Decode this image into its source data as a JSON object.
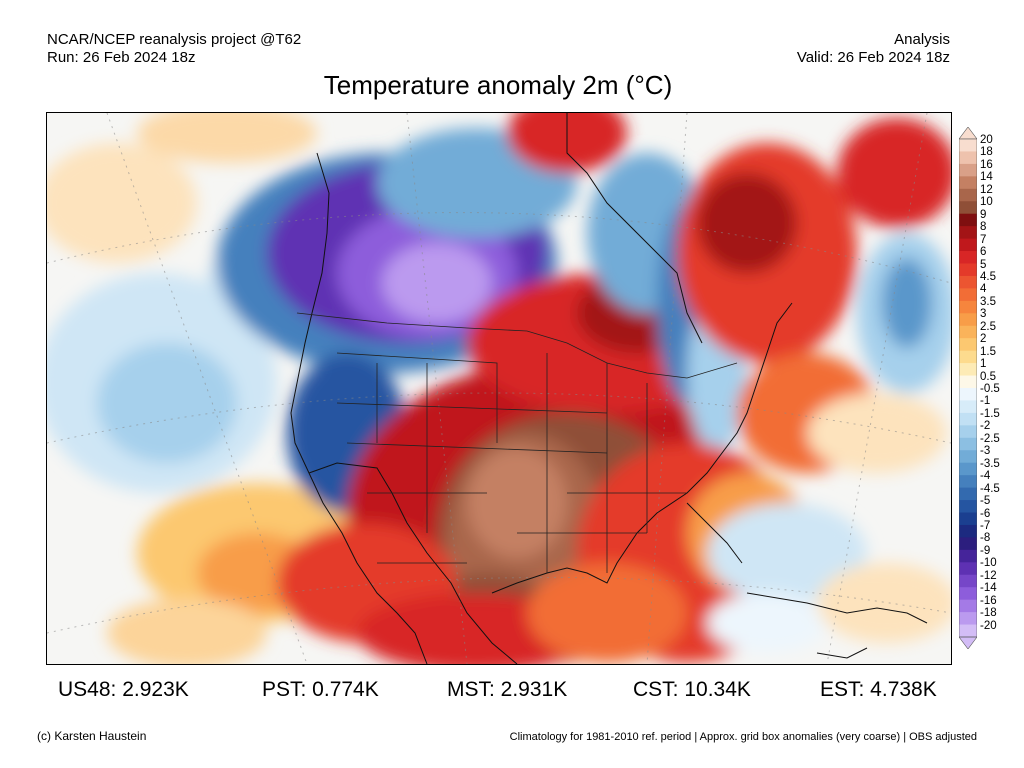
{
  "header": {
    "source": "NCAR/NCEP reanalysis project @T62",
    "run": "Run: 26 Feb 2024 18z",
    "product": "Analysis",
    "valid": "Valid: 26 Feb 2024 18z"
  },
  "title": "Temperature anomaly 2m (°C)",
  "colorbar": {
    "unit": "°C",
    "labels": [
      "20",
      "18",
      "16",
      "14",
      "12",
      "10",
      "9",
      "8",
      "7",
      "6",
      "5",
      "4.5",
      "4",
      "3.5",
      "3",
      "2.5",
      "2",
      "1.5",
      "1",
      "0.5",
      "-0.5",
      "-1",
      "-1.5",
      "-2",
      "-2.5",
      "-3",
      "-3.5",
      "-4",
      "-4.5",
      "-5",
      "-6",
      "-7",
      "-8",
      "-9",
      "-10",
      "-12",
      "-14",
      "-16",
      "-18",
      "-20"
    ],
    "colors": [
      "#f8ddcf",
      "#eec2ad",
      "#d9a088",
      "#c48063",
      "#a9664b",
      "#8f4f37",
      "#7f0f10",
      "#a31416",
      "#c0181c",
      "#d82626",
      "#e43a2a",
      "#ec5531",
      "#f26d36",
      "#f6853d",
      "#f89d48",
      "#fab35a",
      "#fcc870",
      "#fddb8e",
      "#fdebb6",
      "#fdf8e8",
      "#edf6fd",
      "#d7ecf9",
      "#c1e0f4",
      "#a6d0ec",
      "#8cbfe2",
      "#72acd7",
      "#5a97cb",
      "#4580bd",
      "#336aaf",
      "#2555a1",
      "#1b3f90",
      "#1c2a80",
      "#2c1e7e",
      "#45249a",
      "#5e31b3",
      "#7646c8",
      "#8d5ddb",
      "#a47ae6",
      "#bb9aef",
      "#d3bdf6"
    ]
  },
  "stats": [
    {
      "label": "US48: 2.923K"
    },
    {
      "label": "PST: 0.774K"
    },
    {
      "label": "MST: 2.931K"
    },
    {
      "label": "CST: 10.34K"
    },
    {
      "label": "EST: 4.738K"
    }
  ],
  "footer": {
    "credit": "(c) Karsten Haustein",
    "note": "Climatology for 1981-2010 ref. period | Approx. grid box anomalies (very coarse) | OBS adjusted"
  }
}
